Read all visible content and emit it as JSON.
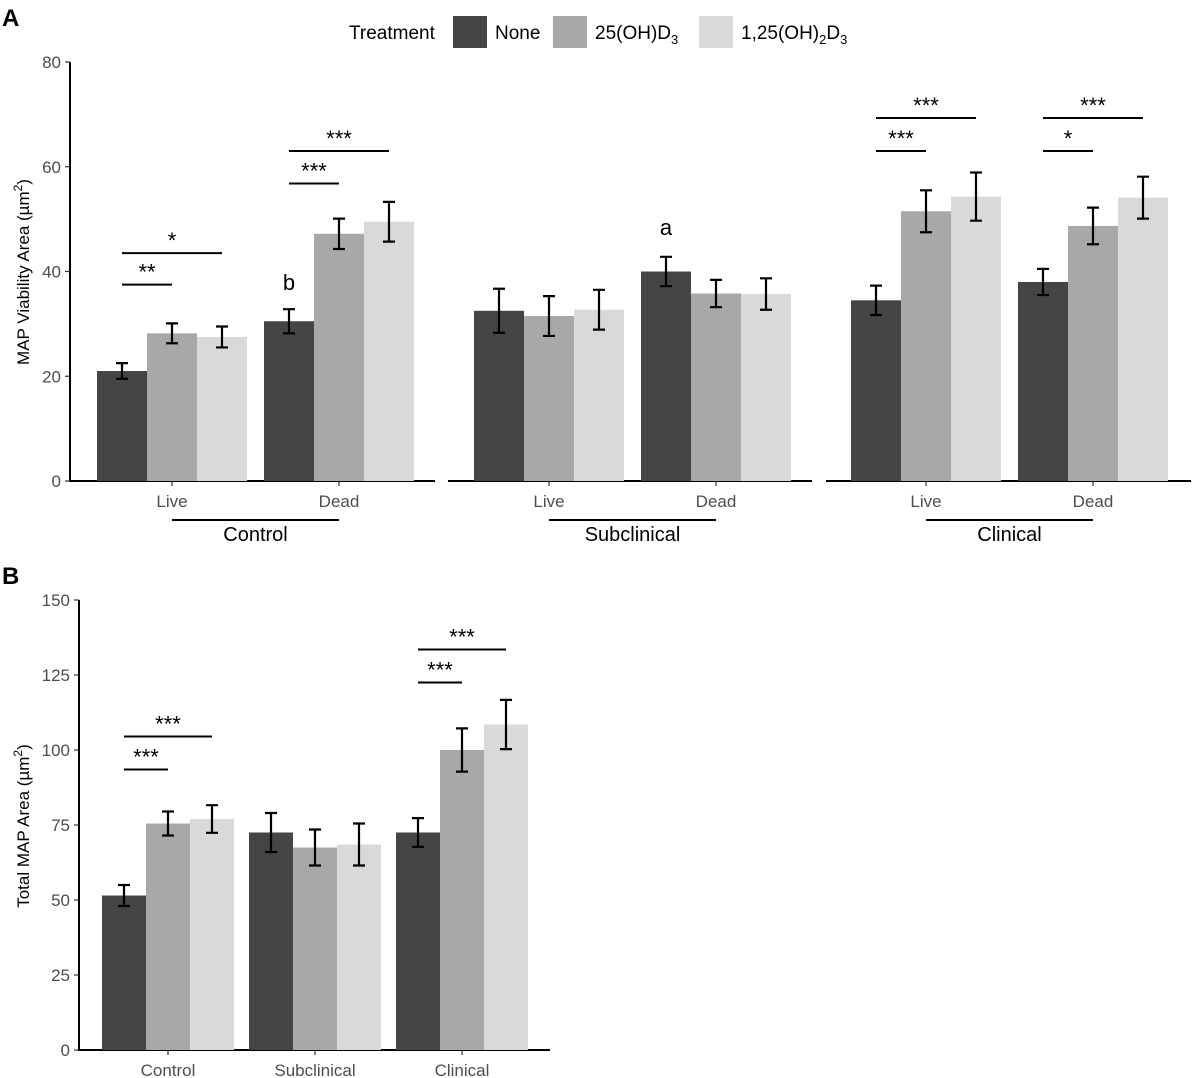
{
  "legend": {
    "title": "Treatment",
    "items": [
      {
        "label": "None",
        "color": "#454545"
      },
      {
        "label": "25(OH)D",
        "sub": "3",
        "color": "#a8a8a8"
      },
      {
        "label": "1,25(OH)",
        "sub1": "2",
        "mid": "D",
        "sub2": "3",
        "color": "#d9d9d9"
      }
    ]
  },
  "chart_data": [
    {
      "panel": "A",
      "type": "bar",
      "ylabel": "MAP Viability Area (µm²)",
      "ylabel_base": "MAP Viability Area (µm",
      "ylabel_sup": "2",
      "ylabel_end": ")",
      "ylim": [
        0,
        80
      ],
      "yticks": [
        0,
        20,
        40,
        60,
        80
      ],
      "facets": [
        {
          "name": "Control",
          "categories": [
            "Live",
            "Dead"
          ],
          "series": [
            {
              "name": "None",
              "values": [
                21.0,
                30.5
              ],
              "err": [
                1.5,
                2.3
              ]
            },
            {
              "name": "25(OH)D3",
              "values": [
                28.2,
                47.2
              ],
              "err": [
                1.9,
                2.9
              ]
            },
            {
              "name": "1,25(OH)2D3",
              "values": [
                27.5,
                49.5
              ],
              "err": [
                2.0,
                3.8
              ]
            }
          ],
          "annotations": [
            {
              "cat": 0,
              "from": 0,
              "to": 1,
              "y": 37.5,
              "text": "**"
            },
            {
              "cat": 0,
              "from": 0,
              "to": 2,
              "y": 43.5,
              "text": "*"
            },
            {
              "cat": 1,
              "from": 0,
              "to": 1,
              "y": 56.8,
              "text": "***"
            },
            {
              "cat": 1,
              "from": 0,
              "to": 2,
              "y": 63.0,
              "text": "***"
            }
          ],
          "letters": [
            {
              "cat": 1,
              "series": 0,
              "y": 36.5,
              "text": "b"
            }
          ]
        },
        {
          "name": "Subclinical",
          "categories": [
            "Live",
            "Dead"
          ],
          "series": [
            {
              "name": "None",
              "values": [
                32.5,
                40.0
              ],
              "err": [
                4.2,
                2.8
              ]
            },
            {
              "name": "25(OH)D3",
              "values": [
                31.5,
                35.8
              ],
              "err": [
                3.8,
                2.6
              ]
            },
            {
              "name": "1,25(OH)2D3",
              "values": [
                32.7,
                35.7
              ],
              "err": [
                3.8,
                3.0
              ]
            }
          ],
          "annotations": [],
          "letters": [
            {
              "cat": 1,
              "series": 0,
              "y": 47.0,
              "text": "a"
            }
          ]
        },
        {
          "name": "Clinical",
          "categories": [
            "Live",
            "Dead"
          ],
          "series": [
            {
              "name": "None",
              "values": [
                34.5,
                38.0
              ],
              "err": [
                2.8,
                2.5
              ]
            },
            {
              "name": "25(OH)D3",
              "values": [
                51.5,
                48.7
              ],
              "err": [
                4.0,
                3.5
              ]
            },
            {
              "name": "1,25(OH)2D3",
              "values": [
                54.3,
                54.1
              ],
              "err": [
                4.6,
                4.0
              ]
            }
          ],
          "annotations": [
            {
              "cat": 0,
              "from": 0,
              "to": 1,
              "y": 63.0,
              "text": "***"
            },
            {
              "cat": 0,
              "from": 0,
              "to": 2,
              "y": 69.3,
              "text": "***"
            },
            {
              "cat": 1,
              "from": 0,
              "to": 1,
              "y": 63.0,
              "text": "*"
            },
            {
              "cat": 1,
              "from": 0,
              "to": 2,
              "y": 69.3,
              "text": "***"
            }
          ],
          "letters": []
        }
      ]
    },
    {
      "panel": "B",
      "type": "bar",
      "ylabel": "Total MAP Area (µm²)",
      "ylabel_base": "Total MAP Area (µm",
      "ylabel_sup": "2",
      "ylabel_end": ")",
      "ylim": [
        0,
        150
      ],
      "yticks": [
        0,
        25,
        50,
        75,
        100,
        125,
        150
      ],
      "categories": [
        "Control",
        "Subclinical",
        "Clinical"
      ],
      "series": [
        {
          "name": "None",
          "values": [
            51.5,
            72.5,
            72.5
          ],
          "err": [
            3.5,
            6.5,
            4.8
          ]
        },
        {
          "name": "25(OH)D3",
          "values": [
            75.5,
            67.5,
            100.0
          ],
          "err": [
            4.0,
            6.0,
            7.2
          ]
        },
        {
          "name": "1,25(OH)2D3",
          "values": [
            77.0,
            68.5,
            108.5
          ],
          "err": [
            4.6,
            7.0,
            8.2
          ]
        }
      ],
      "annotations": [
        {
          "cat": 0,
          "from": 0,
          "to": 1,
          "y": 93.5,
          "text": "***"
        },
        {
          "cat": 0,
          "from": 0,
          "to": 2,
          "y": 104.5,
          "text": "***"
        },
        {
          "cat": 2,
          "from": 0,
          "to": 1,
          "y": 122.5,
          "text": "***"
        },
        {
          "cat": 2,
          "from": 0,
          "to": 2,
          "y": 133.5,
          "text": "***"
        }
      ]
    }
  ]
}
